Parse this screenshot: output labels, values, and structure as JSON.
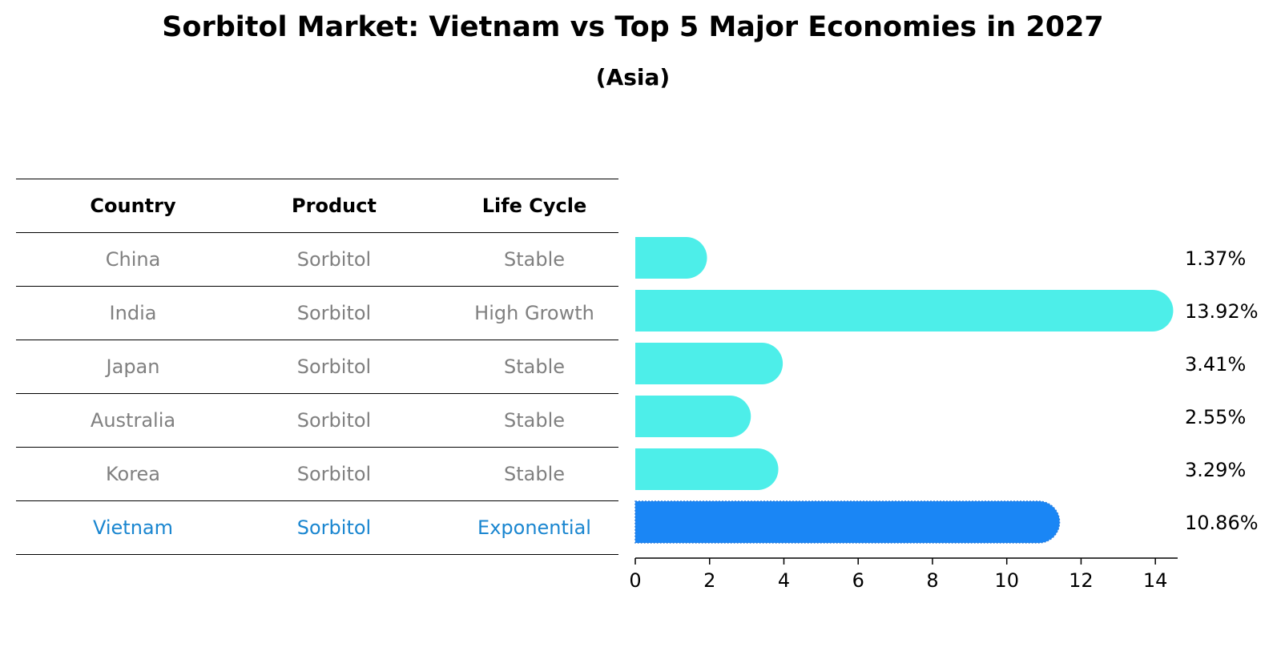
{
  "chart_data": {
    "type": "bar",
    "orientation": "horizontal",
    "title": "Sorbitol Market: Vietnam vs Top 5 Major Economies in 2027",
    "subtitle": "(Asia)",
    "categories": [
      "China",
      "India",
      "Japan",
      "Australia",
      "Korea",
      "Vietnam"
    ],
    "values": [
      1.37,
      13.92,
      3.41,
      2.55,
      3.29,
      10.86
    ],
    "value_labels": [
      "1.37%",
      "13.92%",
      "3.41%",
      "2.55%",
      "3.29%",
      "10.86%"
    ],
    "highlight": "Vietnam",
    "xlim": [
      0,
      14.6
    ],
    "xticks": [
      0,
      2,
      4,
      6,
      8,
      10,
      12,
      14
    ],
    "grid": false,
    "colors": {
      "bar": "#4deee9",
      "highlight": "#1a86f5",
      "highlight_text": "#1a86d0",
      "muted_text": "#808080"
    }
  },
  "table": {
    "headers": [
      "Country",
      "Product",
      "Life Cycle"
    ],
    "rows": [
      [
        "China",
        "Sorbitol",
        "Stable"
      ],
      [
        "India",
        "Sorbitol",
        "High Growth"
      ],
      [
        "Japan",
        "Sorbitol",
        "Stable"
      ],
      [
        "Australia",
        "Sorbitol",
        "Stable"
      ],
      [
        "Korea",
        "Sorbitol",
        "Stable"
      ],
      [
        "Vietnam",
        "Sorbitol",
        "Exponential"
      ]
    ]
  }
}
